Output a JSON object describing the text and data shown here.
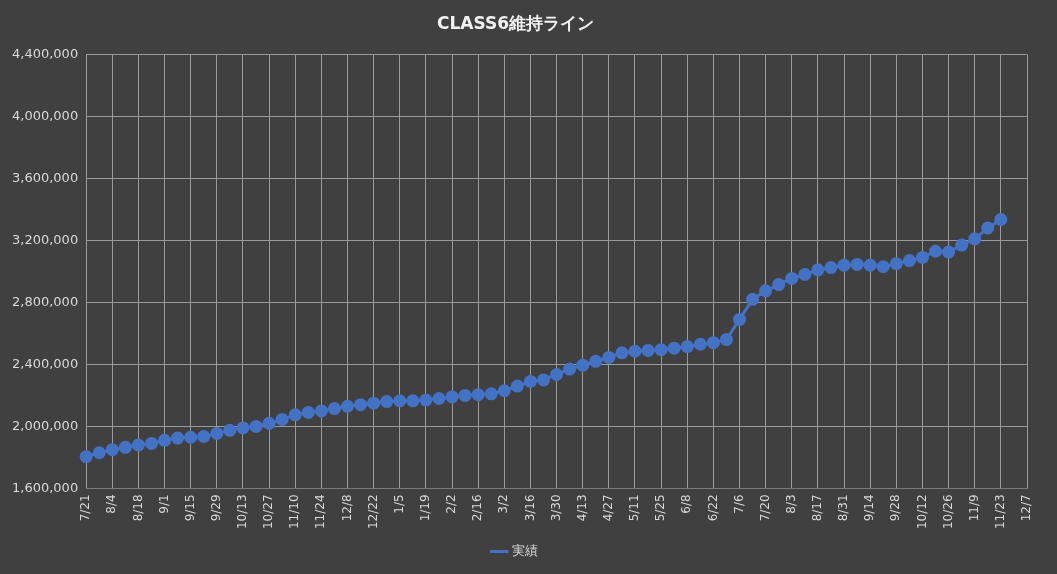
{
  "chart_data": {
    "type": "line",
    "title": "CLASS6維持ライン",
    "categories": [
      "7/21",
      null,
      "8/4",
      null,
      "8/18",
      null,
      "9/1",
      null,
      "9/15",
      null,
      "9/29",
      null,
      "10/13",
      null,
      "10/27",
      null,
      "11/10",
      null,
      "11/24",
      null,
      "12/8",
      null,
      "12/22",
      null,
      "1/5",
      null,
      "1/19",
      null,
      "2/2",
      null,
      "2/16",
      null,
      "3/2",
      null,
      "3/16",
      null,
      "3/30",
      null,
      "4/13",
      null,
      "4/27",
      null,
      "5/11",
      null,
      "5/25",
      null,
      "6/8",
      null,
      "6/22",
      null,
      "7/6",
      null,
      "7/20",
      null,
      "8/3",
      null,
      "8/17",
      null,
      "8/31",
      null,
      "9/14",
      null,
      "9/28",
      null,
      "10/12",
      null,
      "10/26",
      null,
      "11/9",
      null,
      "11/23",
      null,
      "12/7"
    ],
    "series": [
      {
        "name": "実績",
        "color": "#4472c4",
        "values": [
          1805000,
          1830000,
          1850000,
          1865000,
          1880000,
          1890000,
          1910000,
          1925000,
          1930000,
          1935000,
          1955000,
          1975000,
          1990000,
          2000000,
          2020000,
          2045000,
          2075000,
          2090000,
          2100000,
          2115000,
          2130000,
          2140000,
          2150000,
          2160000,
          2165000,
          2165000,
          2170000,
          2180000,
          2190000,
          2200000,
          2205000,
          2210000,
          2230000,
          2260000,
          2290000,
          2300000,
          2335000,
          2370000,
          2395000,
          2420000,
          2445000,
          2475000,
          2485000,
          2490000,
          2495000,
          2505000,
          2515000,
          2530000,
          2540000,
          2560000,
          2690000,
          2820000,
          2875000,
          2915000,
          2955000,
          2980000,
          3010000,
          3025000,
          3040000,
          3045000,
          3040000,
          3030000,
          3050000,
          3070000,
          3090000,
          3130000,
          3125000,
          3170000,
          3210000,
          3280000,
          3335000,
          null,
          null
        ]
      }
    ],
    "ylim": [
      1600000,
      4400000
    ],
    "yticks": [
      {
        "value": 1600000,
        "label": "1,600,000"
      },
      {
        "value": 2000000,
        "label": "2,000,000"
      },
      {
        "value": 2400000,
        "label": "2,400,000"
      },
      {
        "value": 2800000,
        "label": "2,800,000"
      },
      {
        "value": 3200000,
        "label": "3,200,000"
      },
      {
        "value": 3600000,
        "label": "3,600,000"
      },
      {
        "value": 4000000,
        "label": "4,000,000"
      },
      {
        "value": 4400000,
        "label": "4,400,000"
      }
    ],
    "grid": true,
    "legend": "bottom",
    "marker": "circle",
    "line_style": "solid"
  }
}
